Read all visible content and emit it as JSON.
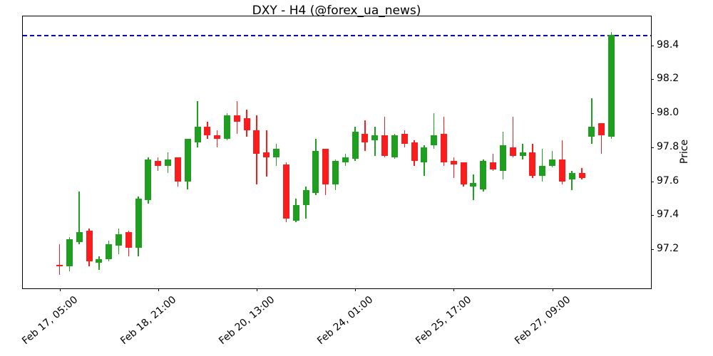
{
  "title": "DXY - H4 (@forex_ua_news)",
  "chart_data": {
    "type": "candlestick",
    "title": "DXY - H4 (@forex_ua_news)",
    "symbol": "DXY",
    "timeframe": "H4",
    "attribution": "@forex_ua_news",
    "ylabel": "Price",
    "ylim": [
      96.97,
      98.57
    ],
    "grid": false,
    "legend": "none",
    "yticks": [
      97.2,
      97.4,
      97.6,
      97.8,
      98.0,
      98.2,
      98.4
    ],
    "xticks": [
      {
        "index": 0,
        "label": "Feb 17, 05:00"
      },
      {
        "index": 10,
        "label": "Feb 18, 21:00"
      },
      {
        "index": 20,
        "label": "Feb 20, 13:00"
      },
      {
        "index": 30,
        "label": "Feb 24, 01:00"
      },
      {
        "index": 40,
        "label": "Feb 25, 17:00"
      },
      {
        "index": 50,
        "label": "Feb 27, 09:00"
      }
    ],
    "hline": {
      "value": 98.46,
      "color": "#0000ee",
      "style": "dashed"
    },
    "colors": {
      "up": "#1f9e1f",
      "down": "#fa1d1d"
    },
    "candles": [
      {
        "o": 97.11,
        "h": 97.23,
        "l": 97.05,
        "c": 97.1
      },
      {
        "o": 97.1,
        "h": 97.27,
        "l": 97.07,
        "c": 97.26
      },
      {
        "o": 97.24,
        "h": 97.54,
        "l": 97.23,
        "c": 97.3
      },
      {
        "o": 97.31,
        "h": 97.32,
        "l": 97.1,
        "c": 97.13
      },
      {
        "o": 97.12,
        "h": 97.16,
        "l": 97.08,
        "c": 97.14
      },
      {
        "o": 97.14,
        "h": 97.25,
        "l": 97.13,
        "c": 97.23
      },
      {
        "o": 97.22,
        "h": 97.32,
        "l": 97.17,
        "c": 97.29
      },
      {
        "o": 97.3,
        "h": 97.31,
        "l": 97.16,
        "c": 97.21
      },
      {
        "o": 97.21,
        "h": 97.51,
        "l": 97.16,
        "c": 97.5
      },
      {
        "o": 97.49,
        "h": 97.74,
        "l": 97.47,
        "c": 97.73
      },
      {
        "o": 97.72,
        "h": 97.74,
        "l": 97.66,
        "c": 97.69
      },
      {
        "o": 97.69,
        "h": 97.77,
        "l": 97.65,
        "c": 97.73
      },
      {
        "o": 97.74,
        "h": 97.74,
        "l": 97.57,
        "c": 97.6
      },
      {
        "o": 97.6,
        "h": 97.85,
        "l": 97.55,
        "c": 97.85
      },
      {
        "o": 97.83,
        "h": 98.07,
        "l": 97.8,
        "c": 97.92
      },
      {
        "o": 97.92,
        "h": 97.95,
        "l": 97.85,
        "c": 97.87
      },
      {
        "o": 97.87,
        "h": 97.9,
        "l": 97.8,
        "c": 97.85
      },
      {
        "o": 97.85,
        "h": 98.0,
        "l": 97.84,
        "c": 97.99
      },
      {
        "o": 97.99,
        "h": 98.07,
        "l": 97.88,
        "c": 97.95
      },
      {
        "o": 97.97,
        "h": 98.02,
        "l": 97.86,
        "c": 97.9
      },
      {
        "o": 97.9,
        "h": 97.99,
        "l": 97.58,
        "c": 97.76
      },
      {
        "o": 97.77,
        "h": 97.9,
        "l": 97.63,
        "c": 97.74
      },
      {
        "o": 97.74,
        "h": 97.82,
        "l": 97.69,
        "c": 97.79
      },
      {
        "o": 97.7,
        "h": 97.71,
        "l": 97.36,
        "c": 97.38
      },
      {
        "o": 97.37,
        "h": 97.5,
        "l": 97.36,
        "c": 97.46
      },
      {
        "o": 97.46,
        "h": 97.57,
        "l": 97.38,
        "c": 97.55
      },
      {
        "o": 97.53,
        "h": 97.85,
        "l": 97.52,
        "c": 97.78
      },
      {
        "o": 97.79,
        "h": 97.79,
        "l": 97.52,
        "c": 97.58
      },
      {
        "o": 97.58,
        "h": 97.73,
        "l": 97.55,
        "c": 97.72
      },
      {
        "o": 97.71,
        "h": 97.76,
        "l": 97.69,
        "c": 97.74
      },
      {
        "o": 97.73,
        "h": 97.92,
        "l": 97.72,
        "c": 97.89
      },
      {
        "o": 97.88,
        "h": 97.96,
        "l": 97.78,
        "c": 97.83
      },
      {
        "o": 97.84,
        "h": 97.92,
        "l": 97.75,
        "c": 97.87
      },
      {
        "o": 97.87,
        "h": 97.98,
        "l": 97.74,
        "c": 97.75
      },
      {
        "o": 97.74,
        "h": 97.88,
        "l": 97.73,
        "c": 97.87
      },
      {
        "o": 97.88,
        "h": 97.9,
        "l": 97.8,
        "c": 97.82
      },
      {
        "o": 97.83,
        "h": 97.84,
        "l": 97.69,
        "c": 97.72
      },
      {
        "o": 97.71,
        "h": 97.81,
        "l": 97.63,
        "c": 97.8
      },
      {
        "o": 97.81,
        "h": 98.0,
        "l": 97.79,
        "c": 97.87
      },
      {
        "o": 97.88,
        "h": 97.98,
        "l": 97.69,
        "c": 97.71
      },
      {
        "o": 97.72,
        "h": 97.74,
        "l": 97.62,
        "c": 97.7
      },
      {
        "o": 97.71,
        "h": 97.71,
        "l": 97.57,
        "c": 97.58
      },
      {
        "o": 97.57,
        "h": 97.64,
        "l": 97.49,
        "c": 97.59
      },
      {
        "o": 97.55,
        "h": 97.73,
        "l": 97.54,
        "c": 97.72
      },
      {
        "o": 97.71,
        "h": 97.76,
        "l": 97.66,
        "c": 97.67
      },
      {
        "o": 97.66,
        "h": 97.89,
        "l": 97.61,
        "c": 97.81
      },
      {
        "o": 97.8,
        "h": 97.98,
        "l": 97.74,
        "c": 97.75
      },
      {
        "o": 97.75,
        "h": 97.82,
        "l": 97.73,
        "c": 97.77
      },
      {
        "o": 97.77,
        "h": 97.82,
        "l": 97.62,
        "c": 97.63
      },
      {
        "o": 97.63,
        "h": 97.79,
        "l": 97.6,
        "c": 97.69
      },
      {
        "o": 97.69,
        "h": 97.78,
        "l": 97.68,
        "c": 97.73
      },
      {
        "o": 97.73,
        "h": 97.84,
        "l": 97.58,
        "c": 97.6
      },
      {
        "o": 97.61,
        "h": 97.66,
        "l": 97.55,
        "c": 97.65
      },
      {
        "o": 97.65,
        "h": 97.68,
        "l": 97.61,
        "c": 97.62
      },
      {
        "o": 97.86,
        "h": 98.09,
        "l": 97.82,
        "c": 97.92
      },
      {
        "o": 97.94,
        "h": 97.94,
        "l": 97.76,
        "c": 97.87
      },
      {
        "o": 97.86,
        "h": 98.48,
        "l": 97.85,
        "c": 98.46
      }
    ]
  }
}
